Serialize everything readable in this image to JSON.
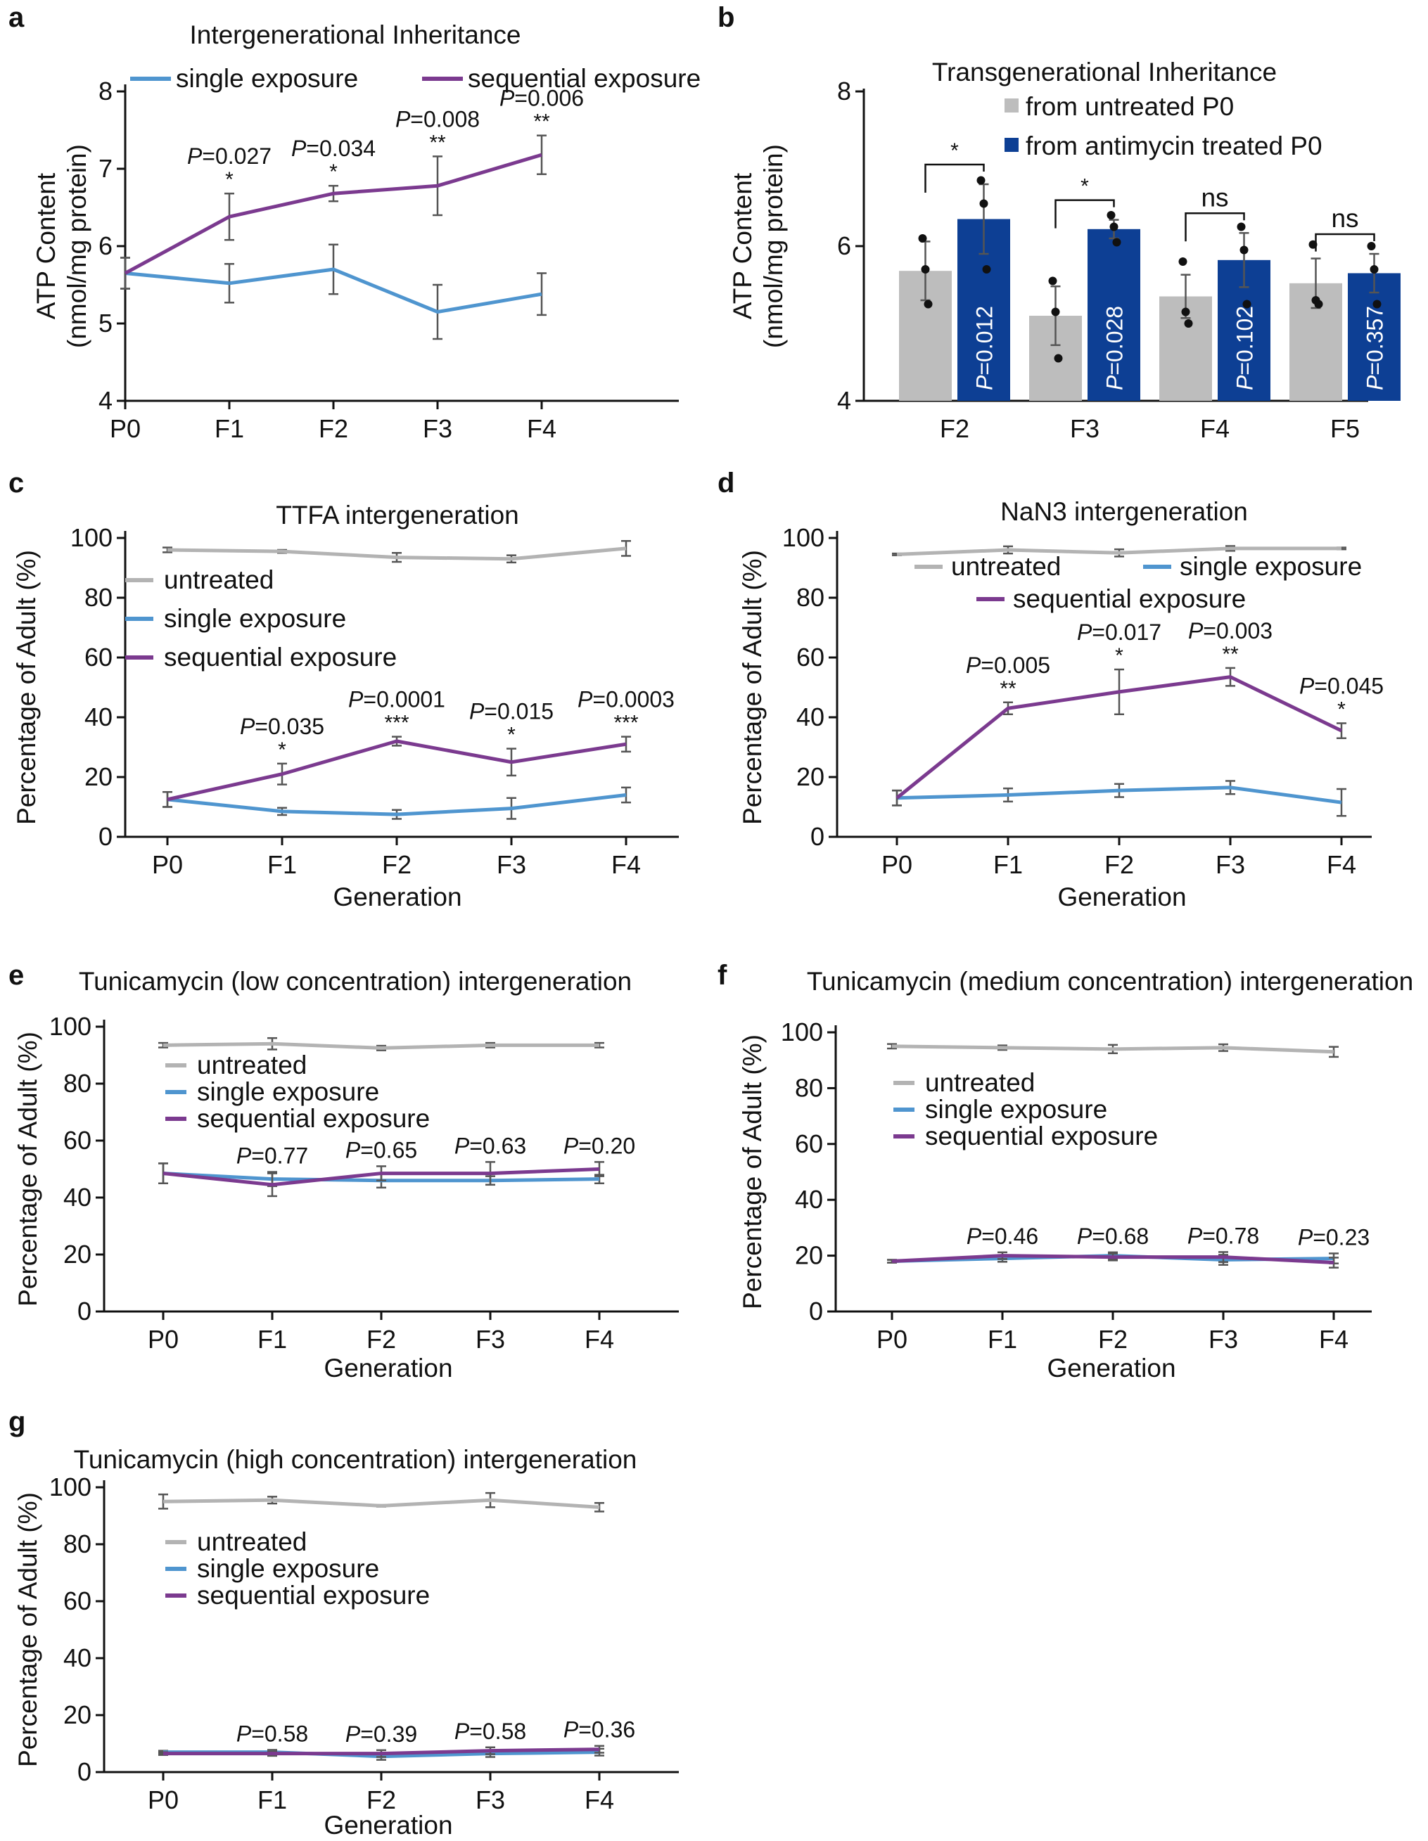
{
  "colors": {
    "single": "#4f95cf",
    "sequential": "#7b3a8f",
    "untreated_line": "#b3b3b3",
    "bar_untreated": "#bdbdbd",
    "bar_treated": "#0d3f94",
    "error": "#555555"
  },
  "chart_data": [
    {
      "id": "a",
      "panel_label": "a",
      "type": "line",
      "title": "Intergenerational Inheritance",
      "xlabel": "",
      "ylabel": [
        "ATP Content",
        "(nmol/mg protein)"
      ],
      "categories": [
        "P0",
        "F1",
        "F2",
        "F3",
        "F4"
      ],
      "ylim": [
        4,
        8
      ],
      "yticks": [
        4,
        5,
        6,
        7,
        8
      ],
      "series": [
        {
          "name": "single exposure",
          "color_key": "single",
          "values": [
            5.65,
            5.52,
            5.7,
            5.15,
            5.38
          ],
          "errors": [
            0.2,
            0.25,
            0.32,
            0.35,
            0.27
          ]
        },
        {
          "name": "sequential exposure",
          "color_key": "sequential",
          "values": [
            5.65,
            6.38,
            6.68,
            6.78,
            7.18
          ],
          "errors": [
            0.2,
            0.3,
            0.1,
            0.38,
            0.25
          ]
        }
      ],
      "annotations": [
        {
          "x": 1,
          "p": "=0.027",
          "stars": "*"
        },
        {
          "x": 2,
          "p": "=0.034",
          "stars": "*"
        },
        {
          "x": 3,
          "p": "=0.008",
          "stars": "**"
        },
        {
          "x": 4,
          "p": "=0.006",
          "stars": "**"
        }
      ]
    },
    {
      "id": "b",
      "panel_label": "b",
      "type": "bar",
      "title": "Transgenerational Inheritance",
      "xlabel": "",
      "ylabel": [
        "ATP Content",
        "(nmol/mg protein)"
      ],
      "categories": [
        "F2",
        "F3",
        "F4",
        "F5"
      ],
      "ylim": [
        4,
        8
      ],
      "yticks": [
        4,
        6,
        8
      ],
      "series": [
        {
          "name": "from untreated P0",
          "color_key": "bar_untreated",
          "values": [
            5.68,
            5.1,
            5.35,
            5.52
          ],
          "errors": [
            0.38,
            0.38,
            0.28,
            0.32
          ],
          "points": [
            [
              6.1,
              5.7,
              5.25
            ],
            [
              5.55,
              5.15,
              4.55
            ],
            [
              5.8,
              5.15,
              5.0
            ],
            [
              6.02,
              5.3,
              5.25
            ]
          ]
        },
        {
          "name": "from antimycin treated P0",
          "color_key": "bar_treated",
          "values": [
            6.35,
            6.22,
            5.82,
            5.65
          ],
          "errors": [
            0.45,
            0.12,
            0.35,
            0.25
          ],
          "points": [
            [
              6.85,
              6.55,
              5.7
            ],
            [
              6.4,
              6.25,
              6.05
            ],
            [
              6.25,
              5.95,
              5.25
            ],
            [
              6.0,
              5.7,
              5.25
            ]
          ]
        }
      ],
      "bar_labels": [
        "=0.012",
        "=0.028",
        "=0.102",
        "=0.357"
      ],
      "significance": [
        "*",
        "*",
        "ns",
        "ns"
      ]
    },
    {
      "id": "c",
      "panel_label": "c",
      "type": "line",
      "title": "TTFA intergeneration",
      "xlabel": "Generation",
      "ylabel": [
        "Percentage of Adult (%)"
      ],
      "categories": [
        "P0",
        "F1",
        "F2",
        "F3",
        "F4"
      ],
      "ylim": [
        0,
        100
      ],
      "yticks": [
        0,
        20,
        40,
        60,
        80,
        100
      ],
      "series": [
        {
          "name": "untreated",
          "color_key": "untreated_line",
          "values": [
            96,
            95.5,
            93.5,
            93,
            96.5
          ],
          "errors": [
            0.8,
            0.5,
            1.5,
            1.2,
            2.5
          ]
        },
        {
          "name": "single exposure",
          "color_key": "single",
          "values": [
            12.5,
            8.5,
            7.5,
            9.5,
            14
          ],
          "errors": [
            2.5,
            1.2,
            1.5,
            3.5,
            2.5
          ]
        },
        {
          "name": "sequential exposure",
          "color_key": "sequential",
          "values": [
            12.5,
            21,
            32,
            25,
            31
          ],
          "errors": [
            2.5,
            3.5,
            1.5,
            4.5,
            2.5
          ]
        }
      ],
      "annotations": [
        {
          "x": 1,
          "p": "=0.035",
          "stars": "*"
        },
        {
          "x": 2,
          "p": "=0.0001",
          "stars": "***"
        },
        {
          "x": 3,
          "p": "=0.015",
          "stars": "*"
        },
        {
          "x": 4,
          "p": "=0.0003",
          "stars": "***"
        }
      ]
    },
    {
      "id": "d",
      "panel_label": "d",
      "type": "line",
      "title": "NaN3 intergeneration",
      "xlabel": "Generation",
      "ylabel": [
        "Percentage of Adult (%)"
      ],
      "categories": [
        "P0",
        "F1",
        "F2",
        "F3",
        "F4"
      ],
      "ylim": [
        0,
        100
      ],
      "yticks": [
        0,
        20,
        40,
        60,
        80,
        100
      ],
      "series": [
        {
          "name": "untreated",
          "color_key": "untreated_line",
          "values": [
            94.5,
            96,
            95,
            96.5,
            96.5
          ],
          "errors": [
            0.3,
            1.2,
            1.2,
            0.8,
            0.3
          ]
        },
        {
          "name": "single exposure",
          "color_key": "single",
          "values": [
            13,
            14,
            15.5,
            16.5,
            11.5
          ],
          "errors": [
            2.5,
            2.2,
            2.2,
            2.2,
            4.5
          ]
        },
        {
          "name": "sequential exposure",
          "color_key": "sequential",
          "values": [
            13,
            43,
            48.5,
            53.5,
            35.5
          ],
          "errors": [
            2.5,
            2,
            7.5,
            3,
            2.5
          ]
        }
      ],
      "annotations": [
        {
          "x": 1,
          "p": "=0.005",
          "stars": "**"
        },
        {
          "x": 2,
          "p": "=0.017",
          "stars": "*"
        },
        {
          "x": 3,
          "p": "=0.003",
          "stars": "**"
        },
        {
          "x": 4,
          "p": "=0.045",
          "stars": "*"
        }
      ]
    },
    {
      "id": "e",
      "panel_label": "e",
      "type": "line",
      "title": "Tunicamycin (low concentration) intergeneration",
      "xlabel": "Generation",
      "ylabel": [
        "Percentage of Adult (%)"
      ],
      "categories": [
        "P0",
        "F1",
        "F2",
        "F3",
        "F4"
      ],
      "ylim": [
        0,
        100
      ],
      "yticks": [
        0,
        20,
        40,
        60,
        80,
        100
      ],
      "series": [
        {
          "name": "untreated",
          "color_key": "untreated_line",
          "values": [
            93.5,
            94,
            92.5,
            93.5,
            93.5
          ],
          "errors": [
            0.8,
            2,
            0.8,
            0.8,
            0.8
          ]
        },
        {
          "name": "single exposure",
          "color_key": "single",
          "values": [
            48.5,
            46.5,
            46,
            46,
            46.5
          ],
          "errors": [
            3.5,
            2.5,
            2.5,
            1.5,
            1.5
          ]
        },
        {
          "name": "sequential exposure",
          "color_key": "sequential",
          "values": [
            48.5,
            44.5,
            48.5,
            48.5,
            50
          ],
          "errors": [
            3.5,
            4,
            2.5,
            4,
            2.5
          ]
        }
      ],
      "annotations": [
        {
          "x": 1,
          "p": "=0.77",
          "stars": ""
        },
        {
          "x": 2,
          "p": "=0.65",
          "stars": ""
        },
        {
          "x": 3,
          "p": "=0.63",
          "stars": ""
        },
        {
          "x": 4,
          "p": "=0.20",
          "stars": ""
        }
      ]
    },
    {
      "id": "f",
      "panel_label": "f",
      "type": "line",
      "title": "Tunicamycin (medium concentration) intergeneration",
      "xlabel": "Generation",
      "ylabel": [
        "Percentage of Adult (%)"
      ],
      "categories": [
        "P0",
        "F1",
        "F2",
        "F3",
        "F4"
      ],
      "ylim": [
        0,
        100
      ],
      "yticks": [
        0,
        20,
        40,
        60,
        80,
        100
      ],
      "series": [
        {
          "name": "untreated",
          "color_key": "untreated_line",
          "values": [
            95,
            94.5,
            94,
            94.5,
            93
          ],
          "errors": [
            0.8,
            0.8,
            1.5,
            1.2,
            1.8
          ]
        },
        {
          "name": "single exposure",
          "color_key": "single",
          "values": [
            18,
            19,
            20,
            18.5,
            19
          ],
          "errors": [
            0.5,
            1.2,
            1.2,
            1.8,
            1.8
          ]
        },
        {
          "name": "sequential exposure",
          "color_key": "sequential",
          "values": [
            18,
            20,
            19.5,
            19.5,
            17.5
          ],
          "errors": [
            0.5,
            1.2,
            1.2,
            1.8,
            1.8
          ]
        }
      ],
      "annotations": [
        {
          "x": 1,
          "p": "=0.46",
          "stars": ""
        },
        {
          "x": 2,
          "p": "=0.68",
          "stars": ""
        },
        {
          "x": 3,
          "p": "=0.78",
          "stars": ""
        },
        {
          "x": 4,
          "p": "=0.23",
          "stars": ""
        }
      ]
    },
    {
      "id": "g",
      "panel_label": "g",
      "type": "line",
      "title": "Tunicamycin (high concentration) intergeneration",
      "xlabel": "Generation",
      "ylabel": [
        "Percentage of Adult (%)"
      ],
      "categories": [
        "P0",
        "F1",
        "F2",
        "F3",
        "F4"
      ],
      "ylim": [
        0,
        100
      ],
      "yticks": [
        0,
        20,
        40,
        60,
        80,
        100
      ],
      "series": [
        {
          "name": "untreated",
          "color_key": "untreated_line",
          "values": [
            95,
            95.5,
            93.5,
            95.5,
            93
          ],
          "errors": [
            2.5,
            1.2,
            0.3,
            2.5,
            1.5
          ]
        },
        {
          "name": "single exposure",
          "color_key": "single",
          "values": [
            7,
            7,
            5.5,
            6.5,
            7
          ],
          "errors": [
            0.5,
            0.8,
            1.2,
            1.2,
            1.2
          ]
        },
        {
          "name": "sequential exposure",
          "color_key": "sequential",
          "values": [
            6.5,
            6.5,
            6.5,
            7.5,
            8
          ],
          "errors": [
            0.5,
            0.8,
            1.2,
            1.2,
            1.2
          ]
        }
      ],
      "annotations": [
        {
          "x": 1,
          "p": "=0.58",
          "stars": ""
        },
        {
          "x": 2,
          "p": "=0.39",
          "stars": ""
        },
        {
          "x": 3,
          "p": "=0.58",
          "stars": ""
        },
        {
          "x": 4,
          "p": "=0.36",
          "stars": ""
        }
      ]
    }
  ]
}
